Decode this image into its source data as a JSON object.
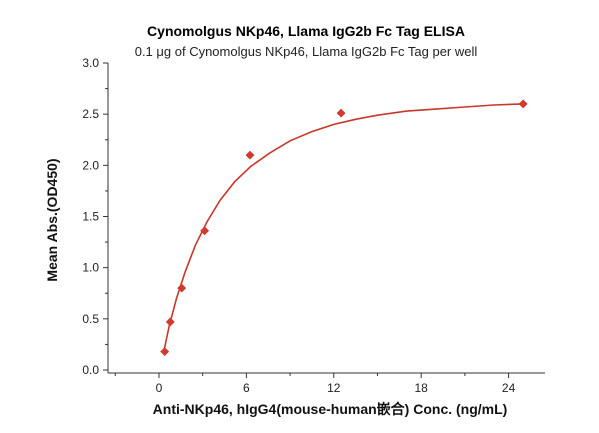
{
  "chart_data": {
    "type": "scatter",
    "title": "Cynomolgus NKp46, Llama IgG2b Fc Tag ELISA",
    "subtitle": "0.1 μg of Cynomolgus NKp46, Llama IgG2b Fc Tag per well",
    "xlabel": "Anti-NKp46, hIgG4(mouse-human嵌合) Conc. (ng/mL)",
    "ylabel": "Mean Abs.(OD450)",
    "xlim": [
      -3.5,
      26.5
    ],
    "ylim": [
      0,
      3.0
    ],
    "x_ticks": [
      "0",
      "6",
      "12",
      "18",
      "24"
    ],
    "x_tick_values": [
      0,
      6,
      12,
      18,
      24
    ],
    "y_ticks": [
      "0.0",
      "0.5",
      "1.0",
      "1.5",
      "2.0",
      "2.5",
      "3.0"
    ],
    "y_tick_values": [
      0.0,
      0.5,
      1.0,
      1.5,
      2.0,
      2.5,
      3.0
    ],
    "points": [
      {
        "x": 0.39,
        "y": 0.18
      },
      {
        "x": 0.78,
        "y": 0.47
      },
      {
        "x": 1.56,
        "y": 0.8
      },
      {
        "x": 3.13,
        "y": 1.36
      },
      {
        "x": 6.25,
        "y": 2.1
      },
      {
        "x": 12.5,
        "y": 2.51
      },
      {
        "x": 25.0,
        "y": 2.6
      }
    ],
    "fit_curve": [
      [
        0.3,
        0.16
      ],
      [
        0.7,
        0.43
      ],
      [
        1.2,
        0.7
      ],
      [
        1.8,
        0.96
      ],
      [
        2.5,
        1.22
      ],
      [
        3.3,
        1.45
      ],
      [
        4.2,
        1.66
      ],
      [
        5.2,
        1.84
      ],
      [
        6.3,
        1.99
      ],
      [
        7.6,
        2.12
      ],
      [
        9.0,
        2.24
      ],
      [
        10.5,
        2.33
      ],
      [
        12.0,
        2.4
      ],
      [
        13.5,
        2.45
      ],
      [
        15.0,
        2.49
      ],
      [
        17.0,
        2.53
      ],
      [
        19.0,
        2.55
      ],
      [
        21.0,
        2.57
      ],
      [
        23.0,
        2.59
      ],
      [
        25.0,
        2.6
      ]
    ],
    "grid": false,
    "legend": "none",
    "marker_color": "#d03a2f",
    "line_color": "#c8372c"
  }
}
